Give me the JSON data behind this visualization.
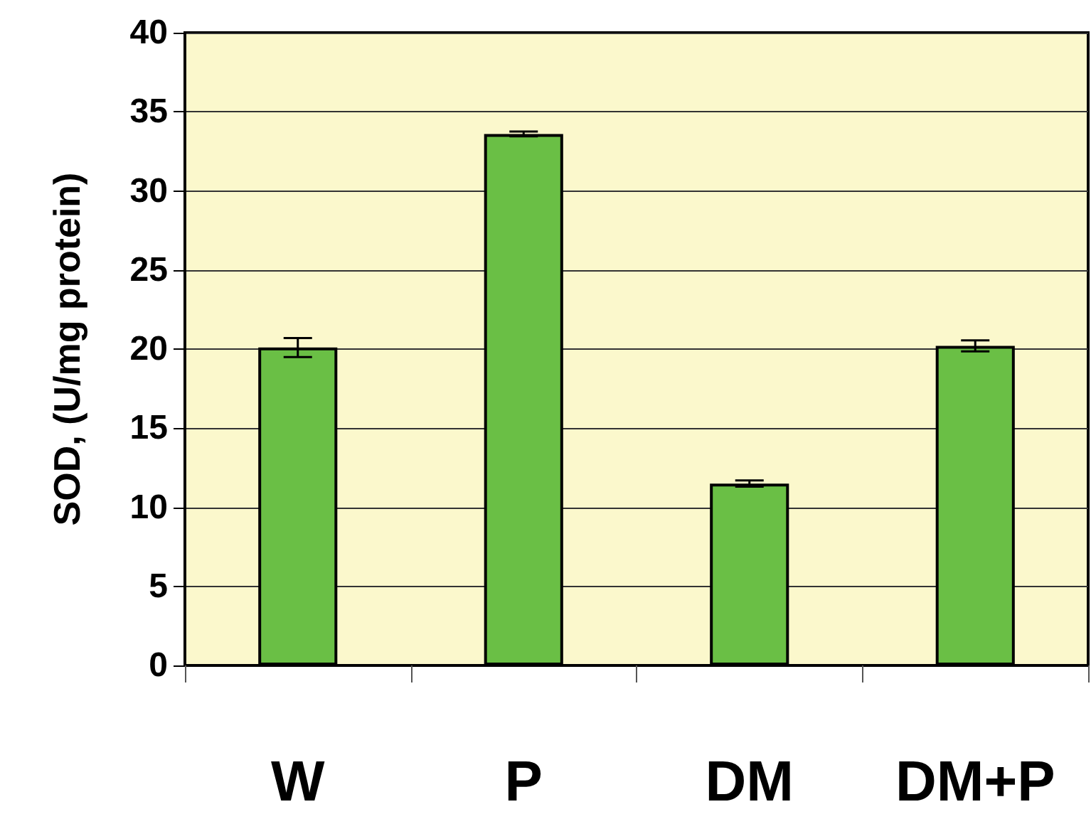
{
  "chart_data": {
    "type": "bar",
    "ylabel": "SOD, (U/mg protein)",
    "categories": [
      "W",
      "P",
      "DM",
      "DM+P"
    ],
    "values": [
      20.1,
      33.6,
      11.5,
      20.2
    ],
    "errors": [
      0.6,
      0.15,
      0.2,
      0.35
    ],
    "color": "#6abf45",
    "ylim": [
      0,
      40
    ],
    "yticks": [
      0,
      5,
      10,
      15,
      20,
      25,
      30,
      35,
      40
    ],
    "grid": "y"
  }
}
